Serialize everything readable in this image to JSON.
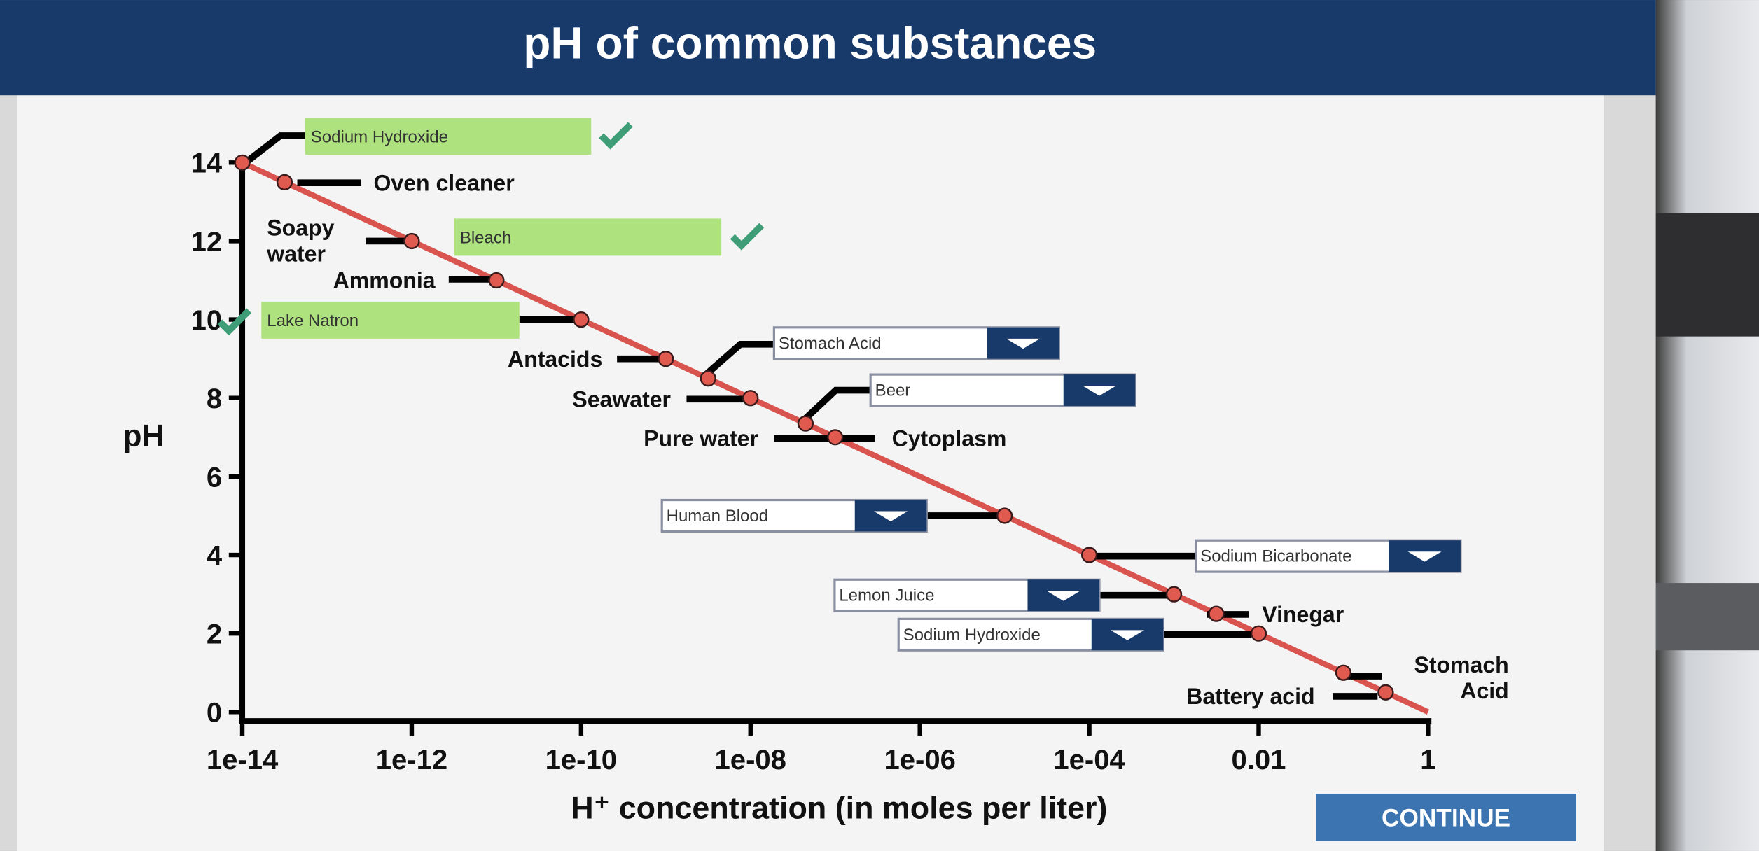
{
  "header": {
    "title": "pH of common substances"
  },
  "chart_data": {
    "type": "scatter",
    "x": [
      1e-14,
      3.16e-14,
      1e-12,
      1e-11,
      1e-10,
      1e-09,
      3.16e-09,
      1e-08,
      4.47e-08,
      1e-07,
      1e-05,
      0.0001,
      0.001,
      0.00316,
      0.01,
      0.1,
      0.316
    ],
    "series": [
      {
        "name": "pH",
        "color": "#e05a50",
        "values": [
          14,
          13.5,
          12,
          11,
          10,
          9,
          8.5,
          8,
          7.35,
          7,
          5,
          4,
          3,
          2.5,
          2,
          1,
          0.5
        ]
      }
    ],
    "reference_line": {
      "color": "#d9534f",
      "x": [
        1e-14,
        1
      ],
      "values": [
        14,
        0
      ]
    },
    "xlim": [
      1e-14,
      1
    ],
    "xlog": true,
    "xticks": [
      {
        "value": 1e-14,
        "label": "1e-14"
      },
      {
        "value": 1e-12,
        "label": "1e-12"
      },
      {
        "value": 1e-10,
        "label": "1e-10"
      },
      {
        "value": 1e-08,
        "label": "1e-08"
      },
      {
        "value": 1e-06,
        "label": "1e-06"
      },
      {
        "value": 0.0001,
        "label": "1e-04"
      },
      0.01,
      1
    ],
    "ylim": [
      0,
      14
    ],
    "yticks": [
      0,
      2,
      4,
      6,
      8,
      10,
      12,
      14
    ],
    "x_label": "H⁺ concentration (in moles per liter)",
    "y_label": "pH"
  },
  "labels": [
    "Sodium Hydroxide",
    "Oven cleaner",
    [
      "Soapy",
      "water"
    ],
    "Bleach",
    "Ammonia",
    "Lake Natron",
    "Antacids",
    "Stomach Acid",
    "Seawater",
    "Beer",
    "Pure water",
    "Cytoplasm",
    "Human Blood",
    "Sodium Bicarbonate",
    "Lemon Juice",
    "Vinegar",
    "Sodium Hydroxide",
    [
      "Stomach",
      "Acid"
    ],
    "Battery acid"
  ],
  "button": "CONTINUE"
}
